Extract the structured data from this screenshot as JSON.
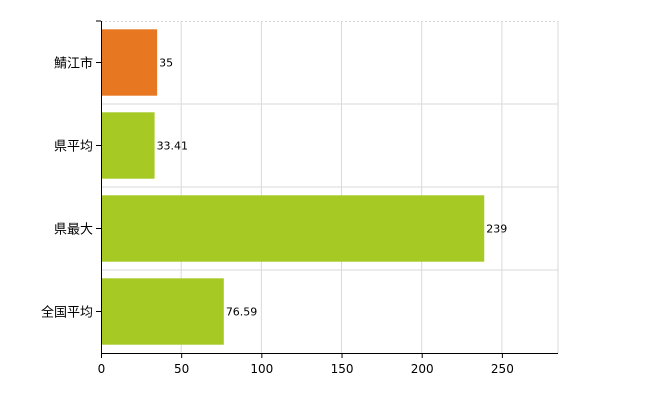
{
  "chart_data": {
    "type": "bar",
    "orientation": "horizontal",
    "categories": [
      "鯖江市",
      "県平均",
      "県最大",
      "全国平均"
    ],
    "values": [
      35,
      33.41,
      239,
      76.59
    ],
    "value_labels": [
      "35",
      "33.41",
      "239",
      "76.59"
    ],
    "bar_colors": [
      "#e87722",
      "#a6c924",
      "#a6c924",
      "#a6c924"
    ],
    "xlim": [
      0,
      285
    ],
    "x_ticks": [
      0,
      50,
      100,
      150,
      200,
      250
    ],
    "x_tick_labels": [
      "0",
      "50",
      "100",
      "150",
      "200",
      "250"
    ],
    "grid": true,
    "title": "",
    "xlabel": "",
    "ylabel": ""
  }
}
